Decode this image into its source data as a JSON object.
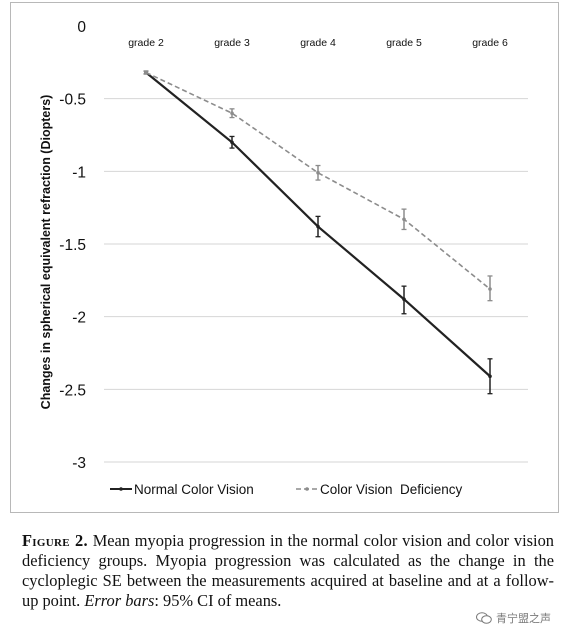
{
  "chart_data": {
    "type": "line",
    "categories": [
      "grade 2",
      "grade 3",
      "grade 4",
      "grade 5",
      "grade 6"
    ],
    "ylabel": "Changes in spherical equivalent refraction (Diopters)",
    "ylim": [
      -3,
      0
    ],
    "yticks": [
      "0",
      "-0.5",
      "-1",
      "-1.5",
      "-2",
      "-2.5",
      "-3"
    ],
    "grid": true,
    "legend_position": "bottom",
    "series": [
      {
        "name": "Normal Color Vision",
        "values": [
          -0.32,
          -0.8,
          -1.38,
          -1.88,
          -2.41
        ],
        "err_low": [
          -0.33,
          -0.84,
          -1.45,
          -1.98,
          -2.53
        ],
        "err_high": [
          -0.31,
          -0.76,
          -1.31,
          -1.79,
          -2.29
        ],
        "color": "#222222",
        "style": "solid"
      },
      {
        "name": "Color Vision  Deficiency",
        "values": [
          -0.32,
          -0.6,
          -1.01,
          -1.33,
          -1.81
        ],
        "err_low": [
          -0.33,
          -0.63,
          -1.06,
          -1.4,
          -1.89
        ],
        "err_high": [
          -0.31,
          -0.57,
          -0.96,
          -1.26,
          -1.72
        ],
        "color": "#8c8c8c",
        "style": "dashed"
      }
    ]
  },
  "caption": {
    "label": "Figure 2.",
    "text_before_em": "Mean myopia progression in the normal color vision and color vision deficiency groups. Myopia progression was calculated as the change in the cycloplegic SE between the measurements acquired at baseline and at a follow-up point. ",
    "em": "Error bars",
    "text_after_em": ": 95% CI of means."
  },
  "watermark": {
    "text": "青宁盟之声",
    "icon": "wechat-icon"
  }
}
